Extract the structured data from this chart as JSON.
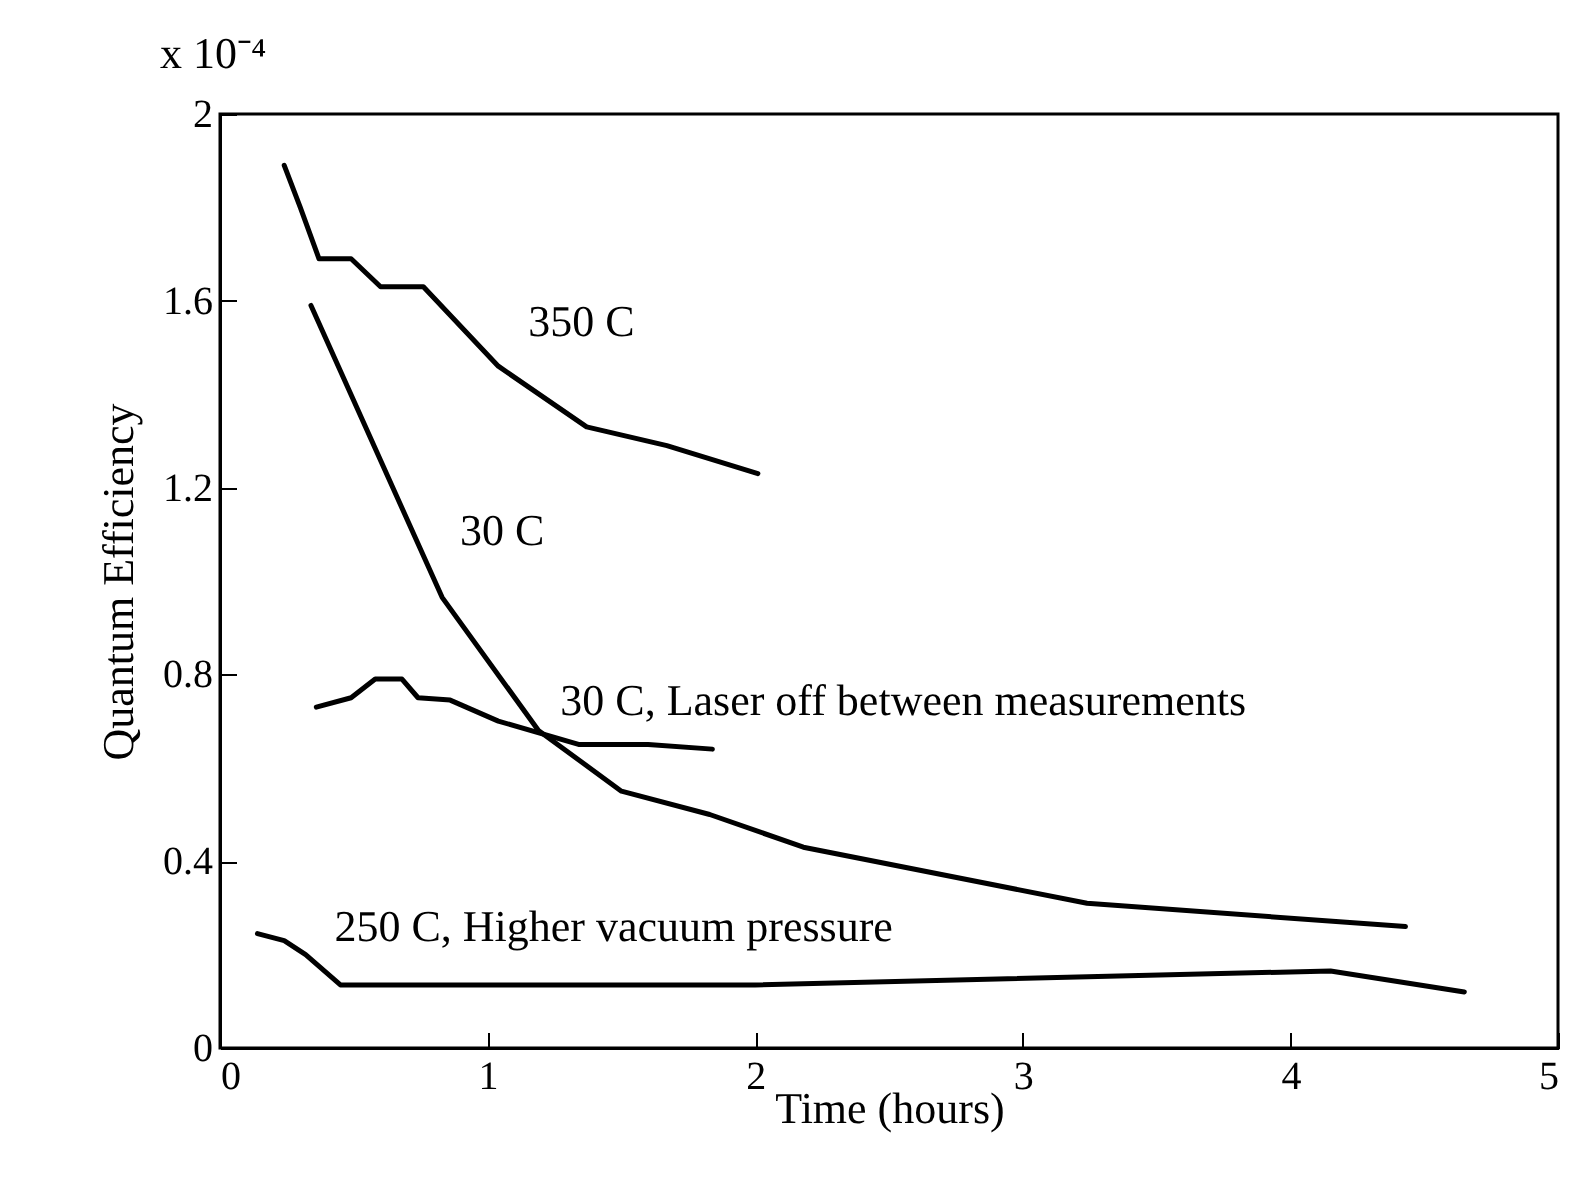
{
  "chart_data": {
    "type": "line",
    "xlabel": "Time (hours)",
    "ylabel": "Quantum Efficiency",
    "annotations": [
      "x 10⁻⁴"
    ],
    "xlim": [
      0,
      5
    ],
    "xticks": [
      0,
      1,
      2,
      3,
      4,
      5
    ],
    "ylim": [
      0,
      2
    ],
    "yticks": [
      0,
      0.4,
      0.8,
      1.2,
      1.6,
      2
    ],
    "grid": false,
    "marker": "none",
    "line_style": "solid",
    "series": [
      {
        "name": "350 C",
        "color": "#000000",
        "x": [
          0.24,
          0.3,
          0.37,
          0.49,
          0.6,
          0.76,
          1.04,
          1.37,
          1.67,
          2.01
        ],
        "values": [
          1.89,
          1.8,
          1.69,
          1.69,
          1.63,
          1.63,
          1.46,
          1.33,
          1.29,
          1.23
        ]
      },
      {
        "name": "30 C",
        "color": "#000000",
        "x": [
          0.34,
          0.83,
          1.19,
          1.5,
          1.83,
          2.18,
          3.24,
          4.43
        ],
        "values": [
          1.59,
          0.965,
          0.68,
          0.55,
          0.5,
          0.43,
          0.31,
          0.26
        ]
      },
      {
        "name": "30 C, Laser off between measurements",
        "color": "#000000",
        "x": [
          0.36,
          0.49,
          0.58,
          0.68,
          0.74,
          0.86,
          1.04,
          1.34,
          1.6,
          1.84
        ],
        "values": [
          0.73,
          0.75,
          0.79,
          0.79,
          0.75,
          0.745,
          0.7,
          0.65,
          0.65,
          0.64
        ]
      },
      {
        "name": "250 C, Higher vacuum pressure",
        "color": "#000000",
        "x": [
          0.14,
          0.24,
          0.32,
          0.45,
          2.0,
          4.15,
          4.65
        ],
        "values": [
          0.245,
          0.23,
          0.2,
          0.135,
          0.135,
          0.165,
          0.12
        ]
      }
    ]
  }
}
